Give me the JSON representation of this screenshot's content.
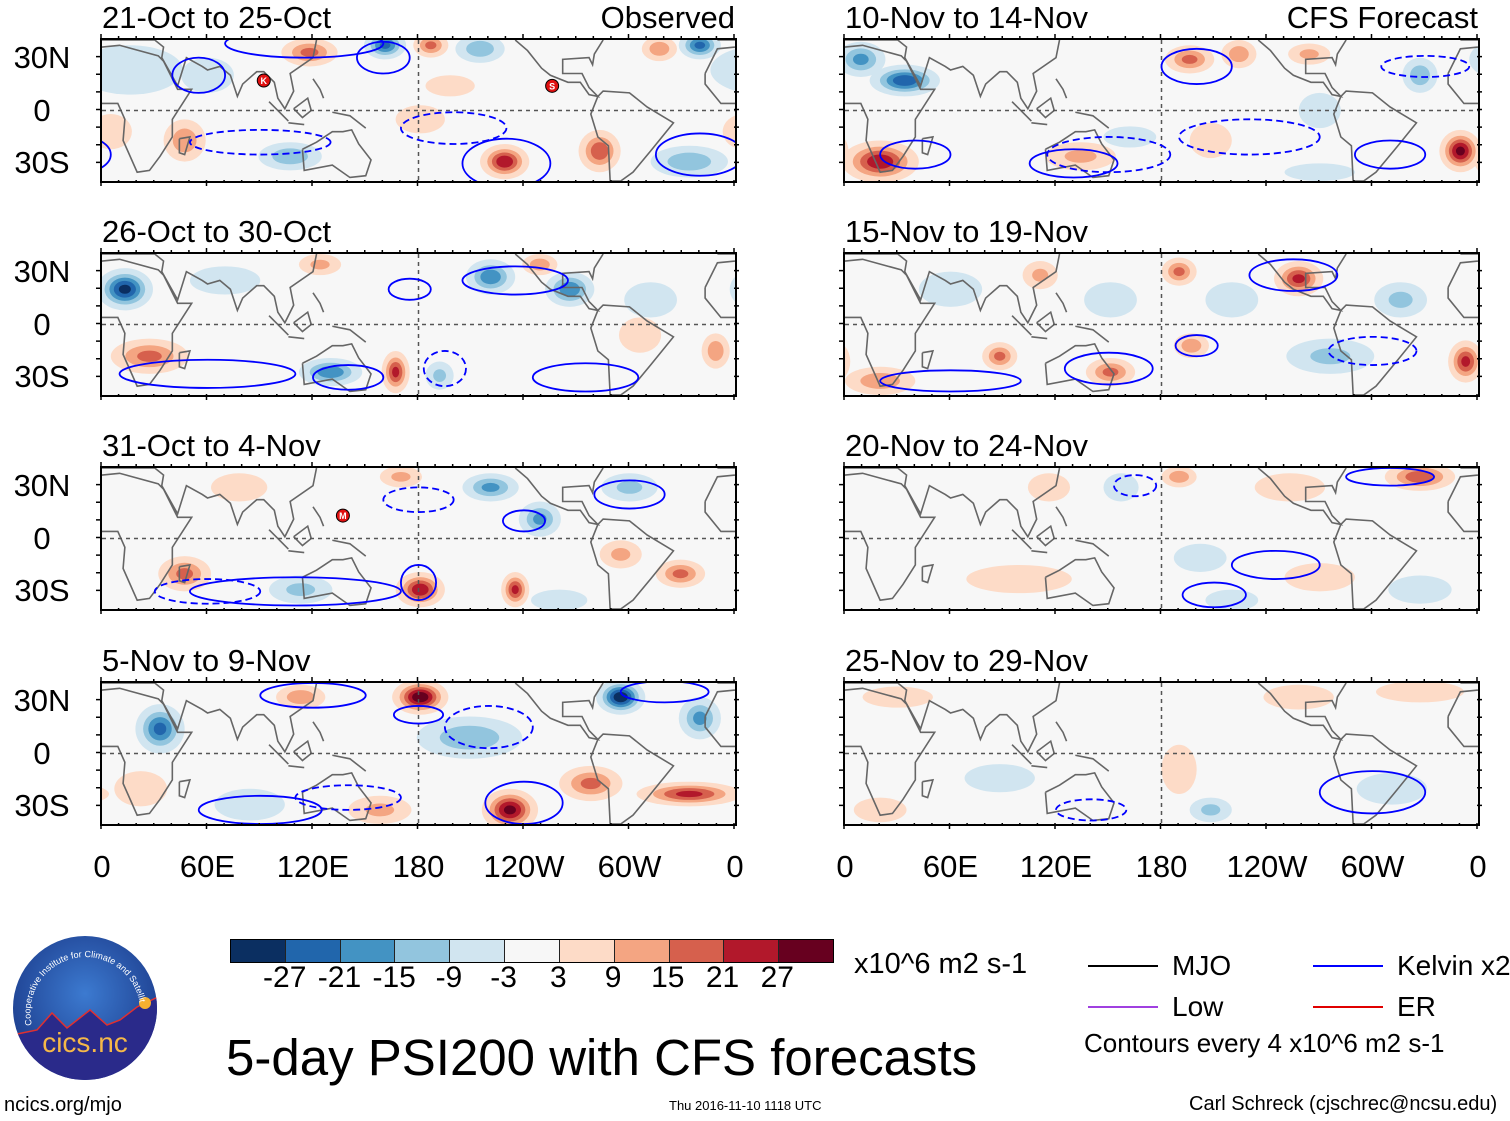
{
  "title": "5-day PSI200 with CFS forecasts",
  "axes": {
    "x_ticks": [
      "0",
      "60E",
      "120E",
      "180",
      "120W",
      "60W",
      "0"
    ],
    "y_ticks": [
      "30N",
      "0",
      "30S"
    ]
  },
  "colorbar": {
    "labels": [
      "-27",
      "-21",
      "-15",
      "-9",
      "-3",
      "3",
      "9",
      "15",
      "21",
      "27"
    ],
    "colors": [
      "#0b2f61",
      "#2166ac",
      "#4393c3",
      "#92c5de",
      "#d1e5f0",
      "#f7f7f7",
      "#fddbc7",
      "#f4a582",
      "#d6604d",
      "#b2182b",
      "#67001f"
    ],
    "units": "x10^6 m2 s-1"
  },
  "legend": {
    "items": [
      {
        "label": "MJO",
        "color": "#000000"
      },
      {
        "label": "Kelvin x2",
        "color": "#0000ff"
      },
      {
        "label": "Low",
        "color": "#a040e0"
      },
      {
        "label": "ER",
        "color": "#e00000"
      }
    ],
    "note": "Contours every 4 x10^6 m2 s-1"
  },
  "footer": {
    "url": "ncics.org/mjo",
    "timestamp": "Thu 2016-11-10 1118 UTC",
    "credit": "Carl Schreck (cjschrec@ncsu.edu)"
  },
  "logo": {
    "text": "cics.nc",
    "ring_text": "Cooperative Institute for Climate and Satellites"
  },
  "chart_data": [
    {
      "type": "heatmap",
      "title": "21-Oct to 25-Oct",
      "label": "Observed",
      "column": 0,
      "anomalies": [
        [
          118,
          33,
          18,
          16,
          8
        ],
        [
          161,
          37,
          -24,
          12,
          8
        ],
        [
          187,
          37,
          18,
          10,
          7
        ],
        [
          215,
          35,
          -15,
          14,
          8
        ],
        [
          340,
          37,
          -24,
          12,
          8
        ],
        [
          317,
          35,
          15,
          10,
          7
        ],
        [
          16,
          23,
          -9,
          30,
          14
        ],
        [
          229,
          -29,
          27,
          14,
          10
        ],
        [
          283,
          -23,
          21,
          12,
          12
        ],
        [
          47,
          -17,
          15,
          12,
          12
        ],
        [
          107,
          -26,
          -15,
          18,
          8
        ],
        [
          334,
          -29,
          -15,
          22,
          9
        ],
        [
          181,
          -5,
          6,
          14,
          8
        ],
        [
          198,
          14,
          6,
          14,
          6
        ],
        [
          5,
          -12,
          9,
          12,
          10
        ],
        [
          60,
          20,
          -6,
          15,
          10
        ]
      ],
      "contours": [
        [
          115,
          38,
          45,
          8,
          false
        ],
        [
          55,
          20,
          15,
          10,
          false
        ],
        [
          230,
          -30,
          25,
          14,
          false
        ],
        [
          340,
          -25,
          25,
          12,
          false
        ],
        [
          200,
          -10,
          30,
          9,
          true
        ],
        [
          90,
          -18,
          40,
          7,
          true
        ],
        [
          160,
          30,
          15,
          9,
          false
        ]
      ],
      "storms": [
        {
          "letter": "K",
          "lon": 92,
          "lat": 17
        },
        {
          "letter": "S",
          "lon": 256,
          "lat": 14
        }
      ]
    },
    {
      "type": "heatmap",
      "title": "26-Oct to 30-Oct",
      "label": "",
      "column": 0,
      "anomalies": [
        [
          13,
          20,
          -30,
          16,
          12
        ],
        [
          124,
          34,
          12,
          12,
          6
        ],
        [
          249,
          34,
          15,
          10,
          6
        ],
        [
          221,
          27,
          -21,
          14,
          10
        ],
        [
          266,
          20,
          -21,
          14,
          10
        ],
        [
          167,
          -27,
          24,
          8,
          12
        ],
        [
          130,
          -27,
          -21,
          18,
          8
        ],
        [
          27,
          -18,
          18,
          22,
          10
        ],
        [
          349,
          -15,
          15,
          8,
          10
        ],
        [
          192,
          -29,
          -12,
          8,
          8
        ],
        [
          306,
          -6,
          9,
          12,
          10
        ],
        [
          312,
          14,
          -9,
          15,
          10
        ],
        [
          70,
          25,
          -6,
          20,
          8
        ]
      ],
      "contours": [
        [
          60,
          -28,
          50,
          8,
          false
        ],
        [
          235,
          25,
          30,
          8,
          false
        ],
        [
          140,
          -30,
          20,
          7,
          false
        ],
        [
          195,
          -25,
          12,
          10,
          true
        ],
        [
          275,
          -30,
          30,
          8,
          false
        ],
        [
          175,
          20,
          12,
          6,
          false
        ]
      ],
      "storms": []
    },
    {
      "type": "heatmap",
      "title": "31-Oct to 4-Nov",
      "label": "",
      "column": 0,
      "anomalies": [
        [
          181,
          -29,
          27,
          14,
          10
        ],
        [
          235,
          -29,
          24,
          8,
          10
        ],
        [
          47,
          -20,
          18,
          15,
          10
        ],
        [
          221,
          29,
          -18,
          16,
          8
        ],
        [
          249,
          11,
          -18,
          12,
          10
        ],
        [
          300,
          29,
          -12,
          16,
          8
        ],
        [
          170,
          35,
          12,
          12,
          6
        ],
        [
          329,
          -20,
          18,
          14,
          8
        ],
        [
          295,
          -9,
          12,
          12,
          8
        ],
        [
          113,
          -29,
          -12,
          18,
          8
        ],
        [
          78,
          29,
          9,
          16,
          8
        ],
        [
          260,
          -35,
          -9,
          16,
          6
        ]
      ],
      "contours": [
        [
          110,
          -30,
          60,
          8,
          false
        ],
        [
          240,
          10,
          12,
          6,
          false
        ],
        [
          300,
          25,
          20,
          8,
          false
        ],
        [
          180,
          -25,
          10,
          10,
          false
        ],
        [
          60,
          -30,
          30,
          7,
          true
        ],
        [
          180,
          22,
          20,
          7,
          true
        ]
      ],
      "storms": [
        {
          "letter": "M",
          "lon": 137,
          "lat": 13
        }
      ]
    },
    {
      "type": "heatmap",
      "title": "5-Nov to 9-Nov",
      "label": "",
      "column": 0,
      "anomalies": [
        [
          181,
          32,
          33,
          16,
          10
        ],
        [
          295,
          32,
          -33,
          14,
          10
        ],
        [
          33,
          14,
          -24,
          14,
          14
        ],
        [
          232,
          -32,
          30,
          16,
          12
        ],
        [
          334,
          -23,
          24,
          30,
          7
        ],
        [
          278,
          -17,
          18,
          18,
          10
        ],
        [
          209,
          9,
          -15,
          30,
          12
        ],
        [
          340,
          20,
          -18,
          12,
          12
        ],
        [
          113,
          32,
          15,
          14,
          7
        ],
        [
          158,
          -32,
          12,
          18,
          8
        ],
        [
          84,
          -29,
          -9,
          20,
          9
        ],
        [
          22,
          -20,
          9,
          15,
          10
        ]
      ],
      "contours": [
        [
          120,
          33,
          30,
          7,
          false
        ],
        [
          180,
          22,
          14,
          5,
          false
        ],
        [
          220,
          15,
          25,
          12,
          true
        ],
        [
          240,
          -28,
          22,
          12,
          false
        ],
        [
          90,
          -32,
          35,
          8,
          false
        ],
        [
          140,
          -25,
          30,
          7,
          true
        ],
        [
          320,
          35,
          25,
          6,
          false
        ]
      ],
      "storms": []
    },
    {
      "type": "heatmap",
      "title": "10-Nov to 14-Nov",
      "label": "CFS Forecast",
      "column": 1,
      "anomalies": [
        [
          34,
          17,
          -27,
          20,
          9
        ],
        [
          9,
          29,
          -18,
          14,
          10
        ],
        [
          20,
          -29,
          27,
          22,
          12
        ],
        [
          350,
          -23,
          30,
          12,
          12
        ],
        [
          196,
          29,
          18,
          14,
          8
        ],
        [
          224,
          32,
          15,
          10,
          8
        ],
        [
          264,
          32,
          12,
          12,
          6
        ],
        [
          327,
          20,
          -15,
          10,
          10
        ],
        [
          270,
          0,
          -9,
          12,
          10
        ],
        [
          134,
          -26,
          12,
          20,
          8
        ],
        [
          208,
          -17,
          9,
          12,
          10
        ],
        [
          162,
          -15,
          -9,
          15,
          6
        ],
        [
          270,
          -35,
          -6,
          20,
          5
        ]
      ],
      "contours": [
        [
          40,
          -25,
          20,
          8,
          false
        ],
        [
          130,
          -30,
          25,
          8,
          false
        ],
        [
          150,
          -25,
          35,
          10,
          true
        ],
        [
          230,
          -15,
          40,
          10,
          true
        ],
        [
          200,
          25,
          20,
          10,
          false
        ],
        [
          310,
          -25,
          20,
          8,
          false
        ],
        [
          330,
          25,
          25,
          6,
          true
        ]
      ],
      "storms": []
    },
    {
      "type": "heatmap",
      "title": "15-Nov to 19-Nov",
      "label": "",
      "column": 1,
      "anomalies": [
        [
          258,
          26,
          24,
          14,
          10
        ],
        [
          190,
          30,
          18,
          10,
          8
        ],
        [
          111,
          28,
          12,
          10,
          8
        ],
        [
          88,
          -18,
          18,
          10,
          8
        ],
        [
          151,
          -27,
          18,
          14,
          8
        ],
        [
          197,
          -12,
          15,
          10,
          7
        ],
        [
          353,
          -21,
          24,
          10,
          12
        ],
        [
          20,
          -32,
          15,
          20,
          8
        ],
        [
          276,
          -18,
          -12,
          25,
          10
        ],
        [
          316,
          14,
          -12,
          15,
          10
        ],
        [
          151,
          14,
          -9,
          15,
          10
        ],
        [
          60,
          20,
          -9,
          18,
          10
        ],
        [
          220,
          14,
          -9,
          15,
          10
        ]
      ],
      "contours": [
        [
          255,
          28,
          25,
          9,
          false
        ],
        [
          200,
          -12,
          12,
          6,
          false
        ],
        [
          60,
          -32,
          40,
          6,
          false
        ],
        [
          150,
          -25,
          25,
          9,
          false
        ],
        [
          300,
          -15,
          25,
          8,
          true
        ]
      ],
      "storms": []
    },
    {
      "type": "heatmap",
      "title": "20-Nov to 24-Nov",
      "label": "",
      "column": 1,
      "anomalies": [
        [
          327,
          35,
          21,
          20,
          8
        ],
        [
          190,
          35,
          15,
          10,
          6
        ],
        [
          253,
          29,
          9,
          20,
          8
        ],
        [
          116,
          29,
          9,
          12,
          8
        ],
        [
          99,
          -23,
          6,
          30,
          8
        ],
        [
          157,
          29,
          -9,
          10,
          8
        ],
        [
          202,
          -11,
          -6,
          15,
          8
        ],
        [
          327,
          -29,
          -9,
          18,
          8
        ],
        [
          220,
          -35,
          -9,
          15,
          6
        ],
        [
          270,
          -22,
          9,
          20,
          8
        ]
      ],
      "contours": [
        [
          245,
          -15,
          25,
          8,
          false
        ],
        [
          210,
          -32,
          18,
          7,
          false
        ],
        [
          310,
          35,
          25,
          5,
          false
        ],
        [
          165,
          30,
          12,
          6,
          true
        ]
      ],
      "storms": []
    },
    {
      "type": "heatmap",
      "title": "25-Nov to 29-Nov",
      "label": "",
      "column": 1,
      "anomalies": [
        [
          190,
          -9,
          6,
          10,
          14
        ],
        [
          258,
          32,
          9,
          20,
          7
        ],
        [
          327,
          35,
          9,
          25,
          6
        ],
        [
          208,
          -32,
          -12,
          12,
          7
        ],
        [
          311,
          -20,
          -9,
          20,
          9
        ],
        [
          88,
          -14,
          -6,
          20,
          8
        ],
        [
          20,
          -32,
          9,
          15,
          7
        ],
        [
          30,
          32,
          6,
          20,
          6
        ]
      ],
      "contours": [
        [
          300,
          -22,
          30,
          12,
          false
        ],
        [
          140,
          -32,
          20,
          6,
          true
        ]
      ],
      "storms": []
    }
  ]
}
